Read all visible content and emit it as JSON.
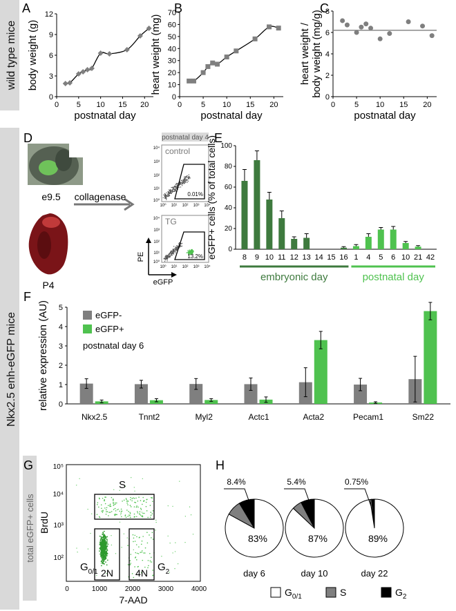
{
  "colors": {
    "gray": "#7f7f7f",
    "dark_green": "#3e7a3e",
    "light_green": "#4fc24f",
    "band": "#d9d9d9",
    "black": "#000000"
  },
  "side_labels": {
    "wild_type": "wild type mice",
    "nkx": "Nkx2.5 enh-eGFP mice",
    "total_egfp": "total eGFP+ cells"
  },
  "panel_letters": {
    "A": "A",
    "B": "B",
    "C": "C",
    "D": "D",
    "E": "E",
    "F": "F",
    "G": "G",
    "H": "H"
  },
  "panel_d": {
    "e95_label": "e9.5",
    "p4_label": "P4",
    "arrow_label": "collagenase",
    "header": "postnatal day 4",
    "control_label": "control",
    "control_pct": "0.01%",
    "tg_label": "TG",
    "tg_pct": "13.2%",
    "x_label": "eGFP",
    "y_label": "PE",
    "ticks": [
      "10⁰",
      "10¹",
      "10²",
      "10³",
      "10⁴"
    ]
  },
  "panel_g": {
    "x_label": "7-AAD",
    "y_label": "BrdU",
    "x_ticks": [
      "0",
      "1000",
      "2000",
      "3000",
      "4000"
    ],
    "y_ticks": [
      "10⁵",
      "10⁴",
      "10³",
      "10²"
    ],
    "gate_s": "S",
    "gate_2n": "2N",
    "gate_4n": "4N",
    "g01_main": "G",
    "g01_sub": "0/1",
    "g2_main": "G",
    "g2_sub": "2"
  },
  "chart_data": [
    {
      "id": "A",
      "type": "line",
      "x": [
        2,
        3,
        5,
        6,
        7,
        8,
        10,
        12,
        16,
        19,
        21
      ],
      "y": [
        1.9,
        2.0,
        3.3,
        3.6,
        3.9,
        4.1,
        6.3,
        6.2,
        6.8,
        8.8,
        9.9
      ],
      "xlabel": "postnatal day",
      "ylabel": "body weight (g)",
      "xlim": [
        0,
        22
      ],
      "ylim": [
        0,
        12
      ],
      "xticks": [
        0,
        5,
        10,
        15,
        20
      ],
      "yticks": [
        0,
        3,
        6,
        9,
        12
      ]
    },
    {
      "id": "B",
      "type": "line",
      "x": [
        2,
        3,
        5,
        6,
        7,
        8,
        10,
        12,
        16,
        19,
        21
      ],
      "y": [
        13,
        13,
        20,
        25,
        28,
        27,
        33,
        38,
        48,
        58,
        57
      ],
      "xlabel": "postnatal day",
      "ylabel": "heart weight (mg)",
      "xlim": [
        0,
        22
      ],
      "ylim": [
        0,
        70
      ],
      "xticks": [
        0,
        5,
        10,
        15,
        20
      ],
      "yticks": [
        0,
        10,
        20,
        30,
        40,
        50,
        60,
        70
      ]
    },
    {
      "id": "C",
      "type": "scatter",
      "x": [
        2,
        3,
        5,
        6,
        7,
        8,
        10,
        12,
        16,
        19,
        21
      ],
      "y": [
        7.1,
        6.7,
        6.0,
        6.5,
        6.8,
        6.4,
        5.4,
        5.9,
        7.0,
        6.6,
        5.7
      ],
      "mean_line": 6.2,
      "xlabel": "postnatal day",
      "ylabel": "heart weight / body weight (mg/g)",
      "xlim": [
        0,
        22
      ],
      "ylim": [
        0,
        8
      ],
      "xticks": [
        0,
        5,
        10,
        15,
        20
      ],
      "yticks": [
        0,
        2,
        4,
        6,
        8
      ]
    },
    {
      "id": "E",
      "type": "bar",
      "categories": [
        "8",
        "9",
        "10",
        "11",
        "12",
        "13",
        "14",
        "15",
        "16",
        "1",
        "4",
        "5",
        "6",
        "10",
        "21",
        "42"
      ],
      "values": [
        66,
        86,
        48,
        30,
        10,
        11,
        0,
        0,
        1.5,
        3,
        12,
        19,
        19,
        6,
        2.5,
        0
      ],
      "errors": [
        11,
        9,
        7,
        7,
        2,
        4,
        0,
        0,
        1,
        1.5,
        3,
        2,
        3,
        1.5,
        1,
        0
      ],
      "groups": [
        {
          "label": "embryonic day",
          "start": 0,
          "end": 8
        },
        {
          "label": "postnatal day",
          "start": 9,
          "end": 15
        }
      ],
      "ylabel": "eGFP+ cells (% of total cells)",
      "ylim": [
        0,
        100
      ],
      "yticks": [
        0,
        20,
        40,
        60,
        80,
        100
      ]
    },
    {
      "id": "F",
      "type": "bar",
      "categories": [
        "Nkx2.5",
        "Tnnt2",
        "Myl2",
        "Actc1",
        "Acta2",
        "Pecam1",
        "Sm22"
      ],
      "series": [
        {
          "name": "eGFP-",
          "values": [
            1.05,
            1.02,
            1.03,
            1.02,
            1.12,
            1.0,
            1.28
          ],
          "errors": [
            0.25,
            0.2,
            0.28,
            0.32,
            0.75,
            0.32,
            1.18
          ]
        },
        {
          "name": "eGFP+",
          "values": [
            0.13,
            0.19,
            0.2,
            0.22,
            3.3,
            0.07,
            4.8
          ],
          "errors": [
            0.07,
            0.08,
            0.07,
            0.14,
            0.45,
            0.04,
            0.45
          ]
        }
      ],
      "annotation": "postnatal day 6",
      "ylabel": "relative expression (AU)",
      "ylim": [
        0,
        5
      ],
      "yticks": [
        0,
        1,
        2,
        3,
        4,
        5
      ]
    },
    {
      "id": "H",
      "type": "pie",
      "charts": [
        {
          "label": "day 6",
          "slices": [
            {
              "name": "G0/1",
              "value": 83
            },
            {
              "name": "S",
              "value": 8.4
            },
            {
              "name": "G2",
              "value": 8.6
            }
          ],
          "label_g01": "83%",
          "label_s": "8.4%"
        },
        {
          "label": "day 10",
          "slices": [
            {
              "name": "G0/1",
              "value": 87
            },
            {
              "name": "S",
              "value": 5.4
            },
            {
              "name": "G2",
              "value": 7.6
            }
          ],
          "label_g01": "87%",
          "label_s": "5.4%"
        },
        {
          "label": "day 22",
          "slices": [
            {
              "name": "G0/1",
              "value": 89
            },
            {
              "name": "S",
              "value": 0.75
            },
            {
              "name": "G2",
              "value": 1.5
            }
          ],
          "label_g01": "89%",
          "label_s": "0.75%"
        }
      ],
      "legend": [
        {
          "main": "G",
          "sub": "0/1"
        },
        {
          "main": "S",
          "sub": ""
        },
        {
          "main": "G",
          "sub": "2"
        }
      ]
    }
  ]
}
